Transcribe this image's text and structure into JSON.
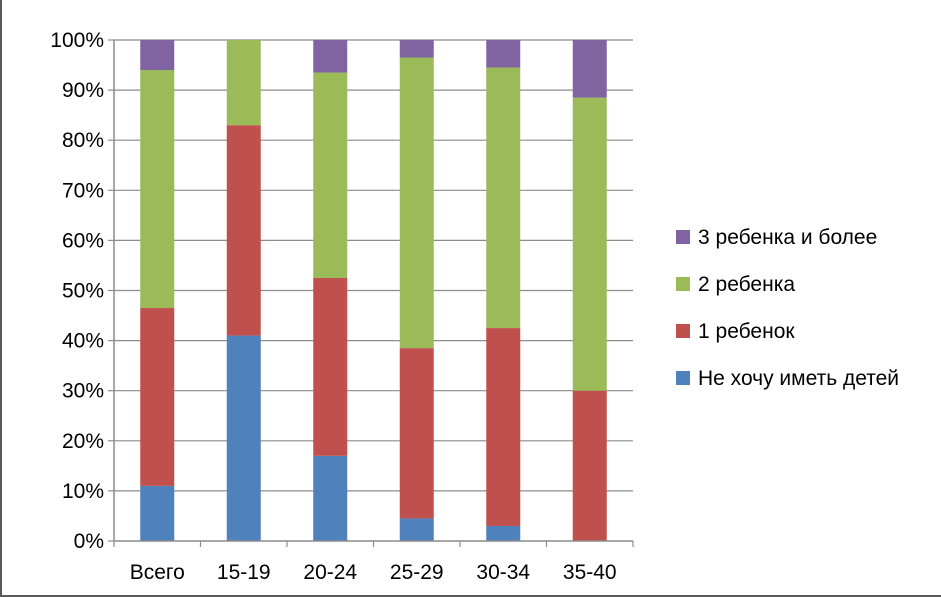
{
  "chart_data": {
    "type": "bar",
    "stacked": "percent",
    "categories": [
      "Всего",
      "15-19",
      "20-24",
      "25-29",
      "30-34",
      "35-40"
    ],
    "series": [
      {
        "name": "Не хочу иметь детей",
        "color": "#4f81bd",
        "values": [
          11,
          41,
          17,
          4.5,
          3,
          0
        ]
      },
      {
        "name": "1 ребенок",
        "color": "#c0504d",
        "values": [
          35.5,
          42,
          35.5,
          34,
          39.5,
          30
        ]
      },
      {
        "name": "2 ребенка",
        "color": "#9bbb59",
        "values": [
          47.5,
          17,
          41,
          58,
          52,
          58.5
        ]
      },
      {
        "name": "3 ребенка и более",
        "color": "#8064a2",
        "values": [
          6,
          0,
          6.5,
          3.5,
          5.5,
          11.5
        ]
      }
    ],
    "y_ticks": [
      "0%",
      "10%",
      "20%",
      "30%",
      "40%",
      "50%",
      "60%",
      "70%",
      "80%",
      "90%",
      "100%"
    ],
    "ylim": [
      0,
      100
    ],
    "grid": true,
    "legend_position": "right",
    "legend_order": [
      "3 ребенка и более",
      "2 ребенка",
      "1 ребенок",
      "Не хочу иметь детей"
    ],
    "title": "",
    "xlabel": "",
    "ylabel": ""
  }
}
